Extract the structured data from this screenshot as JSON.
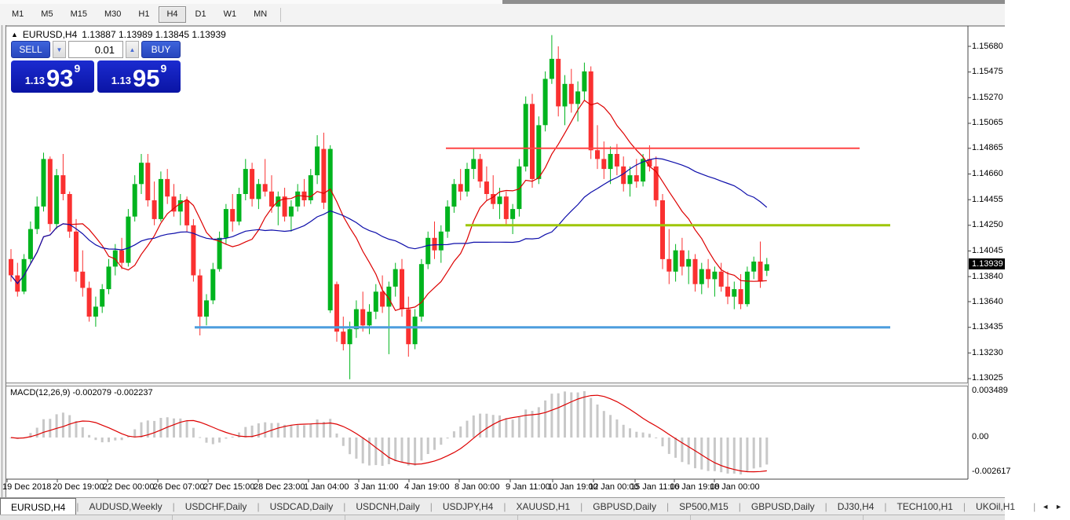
{
  "toolbar": {
    "timeframes": [
      {
        "label": "M1",
        "active": false
      },
      {
        "label": "M5",
        "active": false
      },
      {
        "label": "M15",
        "active": false
      },
      {
        "label": "M30",
        "active": false
      },
      {
        "label": "H1",
        "active": false
      },
      {
        "label": "H4",
        "active": true
      },
      {
        "label": "D1",
        "active": false
      },
      {
        "label": "W1",
        "active": false
      },
      {
        "label": "MN",
        "active": false
      }
    ]
  },
  "chart": {
    "title": {
      "symbol": "EURUSD,H4",
      "ohlc": "1.13887 1.13989 1.13845 1.13939"
    },
    "trade_panel": {
      "sell_label": "SELL",
      "buy_label": "BUY",
      "volume": "0.01",
      "sell_price": {
        "prefix": "1.13",
        "big": "93",
        "sup": "9"
      },
      "buy_price": {
        "prefix": "1.13",
        "big": "95",
        "sup": "9"
      }
    },
    "price_axis": {
      "ticks": [
        "1.15680",
        "1.15475",
        "1.15270",
        "1.15065",
        "1.14865",
        "1.14660",
        "1.14455",
        "1.14250",
        "1.14045",
        "1.13840",
        "1.13640",
        "1.13435",
        "1.13230",
        "1.13025"
      ],
      "current": "1.13939"
    },
    "time_axis": {
      "labels": [
        "19 Dec 2018",
        "20 Dec 19:00",
        "22 Dec 00:00",
        "26 Dec 07:00",
        "27 Dec 15:00",
        "28 Dec 23:00",
        "1 Jan 04:00",
        "3 Jan 11:00",
        "4 Jan 19:00",
        "8 Jan 00:00",
        "9 Jan 11:00",
        "10 Jan 19:00",
        "12 Jan 00:00",
        "15 Jan 11:00",
        "16 Jan 19:00",
        "18 Jan 00:00"
      ],
      "x": [
        3,
        67,
        131,
        195,
        259,
        323,
        387,
        451,
        515,
        579,
        644,
        698,
        750,
        803,
        853,
        904
      ]
    },
    "macd_label": "MACD(12,26,9) -0.002079 -0.002237",
    "macd_axis": {
      "top": "0.003489",
      "zero": "0.00",
      "bottom": "-0.002617"
    }
  },
  "chart_data": {
    "type": "candlestick",
    "symbol": "EURUSD",
    "timeframe": "H4",
    "ylim": [
      1.13,
      1.15856
    ],
    "grid": false,
    "colors": {
      "bull": "#00b41e",
      "bear": "#fa3030",
      "ma_fast": "#dd0000",
      "ma_slow": "#0d0daa",
      "hist": "#c8c8c8",
      "signal": "#dd0000",
      "bg": "#ffffff"
    },
    "overlays": {
      "ma_fast_period": 10,
      "ma_slow_period": 34
    },
    "indicator": {
      "name": "MACD",
      "fast": 12,
      "slow": 26,
      "signal": 9,
      "value": -0.002079,
      "signal_value": -0.002237,
      "scale_max": 0.003489,
      "scale_min": -0.002617
    },
    "hlines": [
      {
        "price": 1.14865,
        "color": "#ff4545",
        "x1": 568,
        "x2": 1095,
        "w": 2
      },
      {
        "price": 1.1425,
        "color": "#9ec607",
        "x1": 593,
        "x2": 1134,
        "w": 3
      },
      {
        "price": 1.13435,
        "color": "#4d9ede",
        "x1": 248,
        "x2": 1134,
        "w": 3
      }
    ],
    "ohlc": [
      [
        1.1398,
        1.1406,
        1.138,
        1.1385
      ],
      [
        1.1385,
        1.1395,
        1.1368,
        1.1372
      ],
      [
        1.1372,
        1.1402,
        1.137,
        1.1398
      ],
      [
        1.1398,
        1.1428,
        1.1395,
        1.1422
      ],
      [
        1.1422,
        1.1448,
        1.1418,
        1.144
      ],
      [
        1.144,
        1.1483,
        1.1436,
        1.1478
      ],
      [
        1.1478,
        1.148,
        1.142,
        1.1426
      ],
      [
        1.1426,
        1.147,
        1.1422,
        1.1465
      ],
      [
        1.1465,
        1.1482,
        1.1445,
        1.145
      ],
      [
        1.145,
        1.1452,
        1.1415,
        1.142
      ],
      [
        1.142,
        1.143,
        1.138,
        1.1388
      ],
      [
        1.1388,
        1.1405,
        1.1368,
        1.1375
      ],
      [
        1.1375,
        1.138,
        1.1348,
        1.1352
      ],
      [
        1.1352,
        1.1368,
        1.1344,
        1.136
      ],
      [
        1.136,
        1.1378,
        1.1355,
        1.1374
      ],
      [
        1.1374,
        1.1398,
        1.137,
        1.1392
      ],
      [
        1.1392,
        1.141,
        1.1385,
        1.1405
      ],
      [
        1.1405,
        1.1415,
        1.139,
        1.1395
      ],
      [
        1.1395,
        1.1438,
        1.1392,
        1.1432
      ],
      [
        1.1432,
        1.1465,
        1.1428,
        1.1458
      ],
      [
        1.1458,
        1.1482,
        1.145,
        1.1475
      ],
      [
        1.1475,
        1.1482,
        1.144,
        1.1445
      ],
      [
        1.1445,
        1.146,
        1.1425,
        1.143
      ],
      [
        1.143,
        1.1468,
        1.1428,
        1.1462
      ],
      [
        1.1462,
        1.147,
        1.1442,
        1.1448
      ],
      [
        1.1448,
        1.1458,
        1.1432,
        1.1436
      ],
      [
        1.1436,
        1.145,
        1.1425,
        1.1445
      ],
      [
        1.1445,
        1.1448,
        1.142,
        1.1425
      ],
      [
        1.1425,
        1.143,
        1.138,
        1.1385
      ],
      [
        1.1385,
        1.139,
        1.1337,
        1.1352
      ],
      [
        1.1352,
        1.137,
        1.1345,
        1.1365
      ],
      [
        1.1365,
        1.1395,
        1.1362,
        1.139
      ],
      [
        1.139,
        1.142,
        1.1388,
        1.1415
      ],
      [
        1.1415,
        1.1442,
        1.141,
        1.1438
      ],
      [
        1.1438,
        1.145,
        1.142,
        1.1428
      ],
      [
        1.1428,
        1.1455,
        1.1425,
        1.145
      ],
      [
        1.145,
        1.1478,
        1.1445,
        1.147
      ],
      [
        1.147,
        1.1475,
        1.144,
        1.1446
      ],
      [
        1.1446,
        1.1462,
        1.1438,
        1.1458
      ],
      [
        1.1458,
        1.1478,
        1.1448,
        1.1452
      ],
      [
        1.1452,
        1.1465,
        1.1435,
        1.144
      ],
      [
        1.144,
        1.1452,
        1.1425,
        1.1448
      ],
      [
        1.1448,
        1.1455,
        1.1428,
        1.1432
      ],
      [
        1.1432,
        1.1445,
        1.142,
        1.144
      ],
      [
        1.144,
        1.1458,
        1.1436,
        1.1452
      ],
      [
        1.1452,
        1.1462,
        1.144,
        1.1445
      ],
      [
        1.1445,
        1.147,
        1.1442,
        1.1465
      ],
      [
        1.1465,
        1.1497,
        1.1458,
        1.1488
      ],
      [
        1.1486,
        1.1499,
        1.1438,
        1.1443
      ],
      [
        1.1357,
        1.1489,
        1.1355,
        1.1486
      ],
      [
        1.1378,
        1.138,
        1.1332,
        1.134
      ],
      [
        1.134,
        1.1352,
        1.1325,
        1.133
      ],
      [
        1.133,
        1.1348,
        1.1302,
        1.1342
      ],
      [
        1.1342,
        1.1365,
        1.1335,
        1.1358
      ],
      [
        1.1358,
        1.1372,
        1.134,
        1.1345
      ],
      [
        1.1345,
        1.1362,
        1.1338,
        1.1356
      ],
      [
        1.1356,
        1.1378,
        1.135,
        1.1372
      ],
      [
        1.1372,
        1.1385,
        1.1355,
        1.136
      ],
      [
        1.136,
        1.138,
        1.1322,
        1.1376
      ],
      [
        1.1376,
        1.1395,
        1.1368,
        1.139
      ],
      [
        1.139,
        1.1398,
        1.1352,
        1.1358
      ],
      [
        1.1358,
        1.1368,
        1.132,
        1.133
      ],
      [
        1.133,
        1.1358,
        1.1326,
        1.1352
      ],
      [
        1.1352,
        1.1398,
        1.1348,
        1.1394
      ],
      [
        1.1394,
        1.142,
        1.139,
        1.1415
      ],
      [
        1.1415,
        1.1428,
        1.1398,
        1.1405
      ],
      [
        1.1405,
        1.1425,
        1.1395,
        1.142
      ],
      [
        1.142,
        1.1445,
        1.1415,
        1.144
      ],
      [
        1.144,
        1.1462,
        1.1435,
        1.1458
      ],
      [
        1.1458,
        1.147,
        1.1445,
        1.1452
      ],
      [
        1.1452,
        1.1475,
        1.1448,
        1.147
      ],
      [
        1.147,
        1.1486,
        1.1462,
        1.1478
      ],
      [
        1.1478,
        1.1482,
        1.1455,
        1.146
      ],
      [
        1.146,
        1.1472,
        1.1445,
        1.145
      ],
      [
        1.145,
        1.1465,
        1.1438,
        1.1442
      ],
      [
        1.1442,
        1.1455,
        1.143,
        1.1448
      ],
      [
        1.1448,
        1.1452,
        1.1425,
        1.143
      ],
      [
        1.143,
        1.1442,
        1.1418,
        1.1438
      ],
      [
        1.1438,
        1.1478,
        1.1432,
        1.1472
      ],
      [
        1.1472,
        1.1528,
        1.1468,
        1.1522
      ],
      [
        1.1522,
        1.153,
        1.1455,
        1.1462
      ],
      [
        1.1462,
        1.1512,
        1.1458,
        1.1505
      ],
      [
        1.1505,
        1.1548,
        1.15,
        1.1542
      ],
      [
        1.1542,
        1.1577,
        1.1538,
        1.1558
      ],
      [
        1.1558,
        1.1568,
        1.1512,
        1.152
      ],
      [
        1.152,
        1.1545,
        1.1505,
        1.1538
      ],
      [
        1.1538,
        1.155,
        1.1515,
        1.1522
      ],
      [
        1.1522,
        1.154,
        1.1508,
        1.1532
      ],
      [
        1.1532,
        1.1555,
        1.1525,
        1.1548
      ],
      [
        1.1548,
        1.1552,
        1.1478,
        1.1485
      ],
      [
        1.1485,
        1.1505,
        1.147,
        1.1478
      ],
      [
        1.1478,
        1.1492,
        1.1462,
        1.147
      ],
      [
        1.147,
        1.1488,
        1.1458,
        1.1482
      ],
      [
        1.1482,
        1.149,
        1.1465,
        1.1472
      ],
      [
        1.1472,
        1.148,
        1.1452,
        1.1458
      ],
      [
        1.1458,
        1.1472,
        1.1448,
        1.1465
      ],
      [
        1.1465,
        1.1478,
        1.1455,
        1.146
      ],
      [
        1.146,
        1.1482,
        1.1456,
        1.1478
      ],
      [
        1.1478,
        1.1489,
        1.1468,
        1.1472
      ],
      [
        1.1472,
        1.148,
        1.144,
        1.1445
      ],
      [
        1.1445,
        1.145,
        1.139,
        1.1398
      ],
      [
        1.1398,
        1.1422,
        1.1378,
        1.1388
      ],
      [
        1.1388,
        1.141,
        1.138,
        1.1405
      ],
      [
        1.1405,
        1.1415,
        1.1385,
        1.1392
      ],
      [
        1.1392,
        1.1405,
        1.1378,
        1.1398
      ],
      [
        1.1398,
        1.1402,
        1.1372,
        1.1378
      ],
      [
        1.1378,
        1.1395,
        1.137,
        1.139
      ],
      [
        1.139,
        1.1398,
        1.1375,
        1.1382
      ],
      [
        1.1382,
        1.1392,
        1.1368,
        1.1388
      ],
      [
        1.1388,
        1.1395,
        1.1372,
        1.1376
      ],
      [
        1.1376,
        1.1388,
        1.1362,
        1.1368
      ],
      [
        1.1368,
        1.138,
        1.1358,
        1.1374
      ],
      [
        1.1374,
        1.1386,
        1.1358,
        1.1362
      ],
      [
        1.1362,
        1.1392,
        1.136,
        1.1388
      ],
      [
        1.1388,
        1.14,
        1.1382,
        1.1396
      ],
      [
        1.1396,
        1.1412,
        1.1375,
        1.138
      ],
      [
        1.13887,
        1.13989,
        1.13845,
        1.13939
      ]
    ]
  },
  "tabs": {
    "items": [
      {
        "label": "EURUSD,H4",
        "active": true
      },
      {
        "label": "AUDUSD,Weekly",
        "active": false
      },
      {
        "label": "USDCHF,Daily",
        "active": false
      },
      {
        "label": "USDCAD,Daily",
        "active": false
      },
      {
        "label": "USDCNH,Daily",
        "active": false
      },
      {
        "label": "USDJPY,H4",
        "active": false
      },
      {
        "label": "XAUUSD,H1",
        "active": false
      },
      {
        "label": "GBPUSD,Daily",
        "active": false
      },
      {
        "label": "SP500,M15",
        "active": false
      },
      {
        "label": "GBPUSD,Daily",
        "active": false
      },
      {
        "label": "DJ30,H4",
        "active": false
      },
      {
        "label": "TECH100,H1",
        "active": false
      },
      {
        "label": "UKOil,H1",
        "active": false
      }
    ],
    "scroll_left": "◄",
    "scroll_right": "►"
  }
}
